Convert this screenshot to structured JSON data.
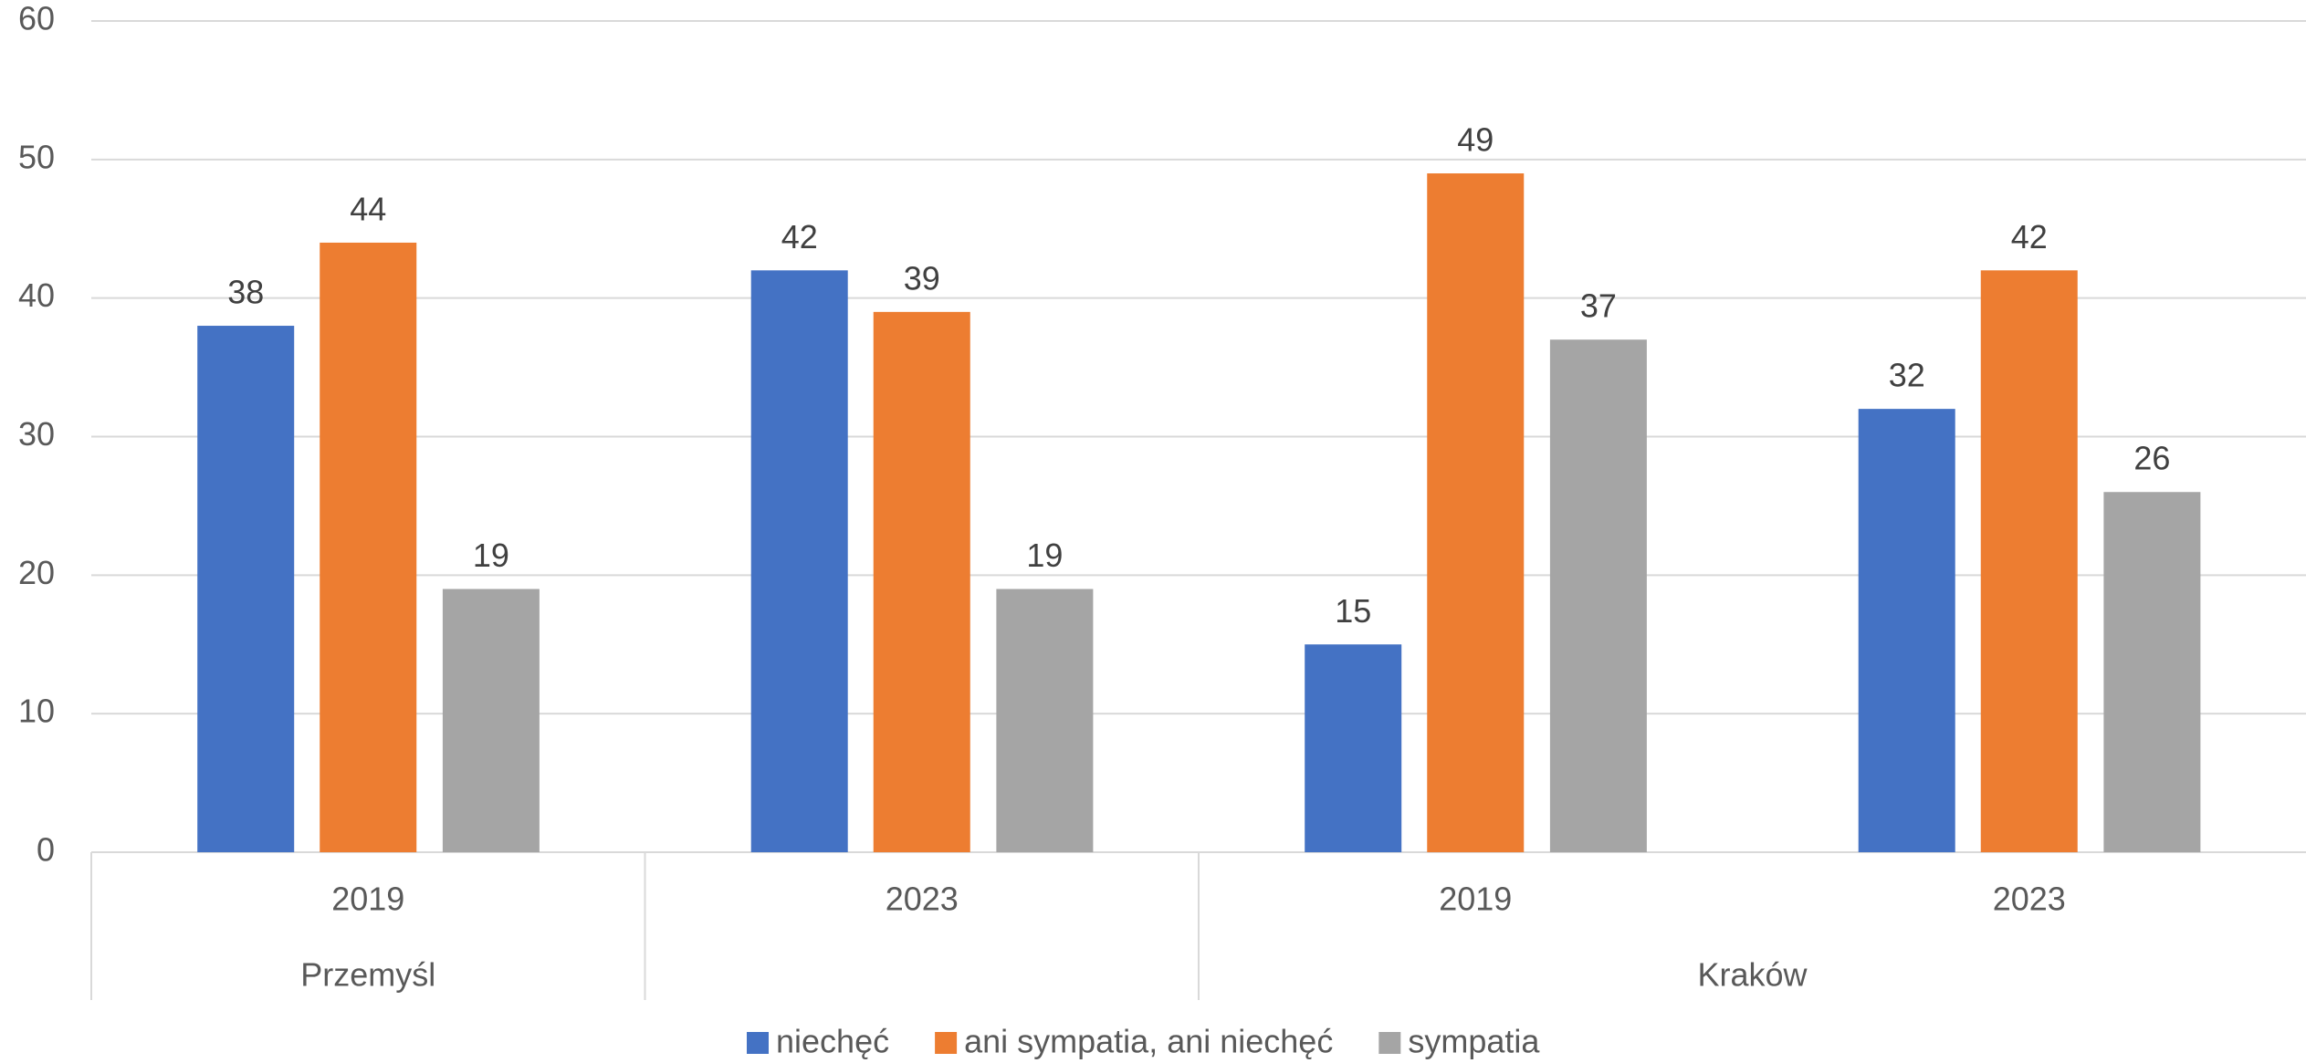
{
  "chart_data": {
    "type": "bar",
    "categories": [
      "2019",
      "2023",
      "2019",
      "2023"
    ],
    "group_labels": [
      "Przemyśl",
      "Kraków"
    ],
    "series": [
      {
        "name": "niechęć",
        "color": "#4472c4",
        "values": [
          38,
          42,
          15,
          32
        ]
      },
      {
        "name": "ani sympatia, ani niechęć",
        "color": "#ed7d31",
        "values": [
          44,
          39,
          49,
          42
        ]
      },
      {
        "name": "sympatia",
        "color": "#a5a5a5",
        "values": [
          19,
          19,
          37,
          26
        ]
      }
    ],
    "ylim": [
      0,
      60
    ],
    "yticks": [
      0,
      10,
      20,
      30,
      40,
      50,
      60
    ],
    "grid": true,
    "legend": "bottom"
  }
}
